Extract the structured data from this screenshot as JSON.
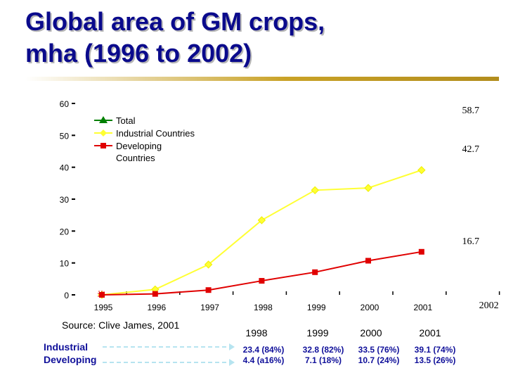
{
  "title": {
    "line1": "Global area of GM crops,",
    "line2": "mha (1996 to 2002)"
  },
  "source": "Source: Clive James, 2001",
  "chart_data": {
    "type": "line",
    "title": "Global area of GM crops, mha (1996 to 2002)",
    "xlabel": "",
    "ylabel": "",
    "ylim": [
      0,
      60
    ],
    "yticks": [
      0,
      10,
      20,
      30,
      40,
      50,
      60
    ],
    "categories": [
      "1995",
      "1996",
      "1997",
      "1998",
      "1999",
      "2000",
      "2001",
      "2002"
    ],
    "series": [
      {
        "name": "Total",
        "color": "#008000",
        "marker": "triangle",
        "values": [
          null,
          null,
          null,
          null,
          null,
          null,
          null,
          null
        ]
      },
      {
        "name": "Industrial Countries",
        "color": "#ffff33",
        "marker": "diamond",
        "values": [
          0,
          1.7,
          9.5,
          23.4,
          32.8,
          33.5,
          39.1,
          null
        ]
      },
      {
        "name": "Developing Countries",
        "color": "#e00000",
        "marker": "square",
        "values": [
          0,
          0.3,
          1.5,
          4.4,
          7.1,
          10.7,
          13.5,
          null
        ]
      }
    ],
    "end_labels": [
      "58.7",
      "42.7",
      "16.7"
    ],
    "legend": [
      "Total",
      "Industrial Countries",
      "Developing",
      "Countries"
    ],
    "legend_position": "top-left"
  },
  "table": {
    "years": [
      "1998",
      "1999",
      "2000",
      "2001"
    ],
    "rows": [
      {
        "label": "Industrial",
        "cells": [
          "23.4 (84%)",
          "32.8 (82%)",
          "33.5 (76%)",
          "39.1 (74%)"
        ]
      },
      {
        "label": "Developing",
        "cells": [
          "4.4 (a16%)",
          "7.1 (18%)",
          "10.7 (24%)",
          "13.5 (26%)"
        ]
      }
    ]
  }
}
